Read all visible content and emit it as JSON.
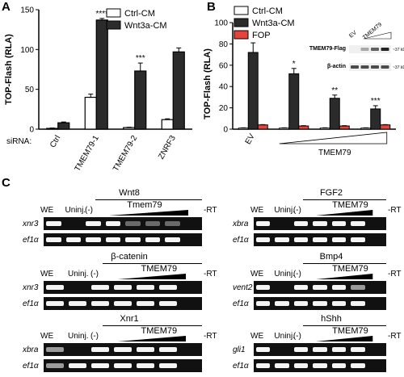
{
  "panels": {
    "A": {
      "letter": "A",
      "ylabel": "TOP-Flash (RLA)",
      "xprefix": "siRNA:",
      "legend": [
        "Ctrl-CM",
        "Wnt3a-CM"
      ],
      "yticks": [
        "0",
        "50",
        "100",
        "150"
      ]
    },
    "B": {
      "letter": "B",
      "ylabel": "TOP-Flash (RLA)",
      "legend": [
        "Ctrl-CM",
        "Wnt3a-CM",
        "FOP"
      ],
      "yticks": [
        "0",
        "20",
        "40",
        "60",
        "80",
        "100"
      ],
      "xlabels": [
        "EV",
        "TMEM79"
      ],
      "inset": {
        "col_labels": [
          "EV",
          "TMEM79"
        ],
        "rows": [
          "TMEM79-Flag",
          "β-actin"
        ],
        "markers": [
          "~37 kD",
          "~37 kD"
        ]
      }
    },
    "C": {
      "letter": "C"
    }
  },
  "chart_data": [
    {
      "panel": "A",
      "type": "bar",
      "title": "",
      "ylabel": "TOP-Flash (RLA)",
      "xlabel": "siRNA:",
      "categories": [
        "Ctrl",
        "TMEM79-1",
        "TMEM79-2",
        "ZNRF3"
      ],
      "ylim": [
        0,
        150
      ],
      "series": [
        {
          "name": "Ctrl-CM",
          "values": [
            1,
            40,
            2,
            12
          ],
          "errors": [
            0.5,
            4,
            0.5,
            1
          ],
          "color": "#ffffff"
        },
        {
          "name": "Wnt3a-CM",
          "values": [
            8,
            137,
            73,
            97
          ],
          "errors": [
            1,
            2,
            10,
            5
          ],
          "color": "#2b2b2b"
        }
      ],
      "annotations": [
        "",
        "****",
        "***",
        ""
      ],
      "legend_position": "top-right"
    },
    {
      "panel": "B",
      "type": "bar",
      "title": "",
      "ylabel": "TOP-Flash (RLA)",
      "categories": [
        "EV",
        "TMEM79 (1)",
        "TMEM79 (2)",
        "TMEM79 (3)"
      ],
      "ylim": [
        0,
        100
      ],
      "series": [
        {
          "name": "Ctrl-CM",
          "values": [
            1,
            1,
            1,
            1
          ],
          "errors": [
            0.3,
            0.3,
            0.3,
            0.3
          ],
          "color": "#ffffff"
        },
        {
          "name": "Wnt3a-CM",
          "values": [
            72,
            52,
            29,
            19
          ],
          "errors": [
            9,
            5,
            3,
            3
          ],
          "color": "#2b2b2b"
        },
        {
          "name": "FOP",
          "values": [
            4,
            3,
            3,
            4
          ],
          "errors": [
            0.3,
            0.3,
            0.3,
            0.3
          ],
          "color": "#e8433b"
        }
      ],
      "annotations": [
        "",
        "*",
        "**",
        "***"
      ],
      "legend_position": "top-left"
    }
  ],
  "gels": [
    {
      "title": "Wnt8",
      "agent": "Tmem79",
      "lanes": [
        "WE",
        "Uninj.",
        "(-)"
      ],
      "rt": "-RT",
      "genes": [
        "xnr3",
        "ef1α"
      ],
      "bands": [
        [
          3,
          0,
          3,
          3,
          1,
          1,
          1,
          0
        ],
        [
          3,
          3,
          3,
          3,
          3,
          3,
          3,
          0
        ]
      ]
    },
    {
      "title": "FGF2",
      "agent": "TMEM79",
      "lanes": [
        "WE",
        "Uninj.",
        "(-)"
      ],
      "rt": "-RT",
      "genes": [
        "xbra",
        "ef1α"
      ],
      "bands": [
        [
          3,
          0,
          3,
          3,
          3,
          3,
          0
        ],
        [
          3,
          3,
          3,
          3,
          3,
          3,
          0
        ]
      ]
    },
    {
      "title": "β-catenin",
      "agent": "TMEM79",
      "lanes": [
        "WE",
        "Uninj.",
        "(-)"
      ],
      "rt": "-RT",
      "genes": [
        "xnr3",
        "ef1α"
      ],
      "bands": [
        [
          3,
          0,
          3,
          3,
          3,
          3,
          0
        ],
        [
          3,
          3,
          3,
          3,
          3,
          3,
          0
        ]
      ]
    },
    {
      "title": "Bmp4",
      "agent": "TMEM79",
      "lanes": [
        "WE",
        "Uninj.",
        "(-)"
      ],
      "rt": "-RT",
      "genes": [
        "vent2",
        "ef1α"
      ],
      "bands": [
        [
          3,
          0,
          3,
          3,
          3,
          2,
          0
        ],
        [
          3,
          3,
          3,
          3,
          3,
          3,
          0
        ]
      ]
    },
    {
      "title": "Xnr1",
      "agent": "TMEM79",
      "lanes": [
        "WE",
        "Uninj.",
        "(-)"
      ],
      "rt": "-RT",
      "genes": [
        "xbra",
        "ef1α"
      ],
      "bands": [
        [
          2,
          0,
          3,
          3,
          3,
          3,
          0
        ],
        [
          2,
          3,
          3,
          3,
          3,
          3,
          0
        ]
      ]
    },
    {
      "title": "hShh",
      "agent": "TMEM79",
      "lanes": [
        "WE",
        "Uninj.",
        "(-)"
      ],
      "rt": "-RT",
      "genes": [
        "gli1",
        "ef1α"
      ],
      "bands": [
        [
          3,
          0,
          3,
          3,
          3,
          3,
          0
        ],
        [
          3,
          3,
          3,
          3,
          3,
          3,
          0
        ]
      ]
    }
  ]
}
